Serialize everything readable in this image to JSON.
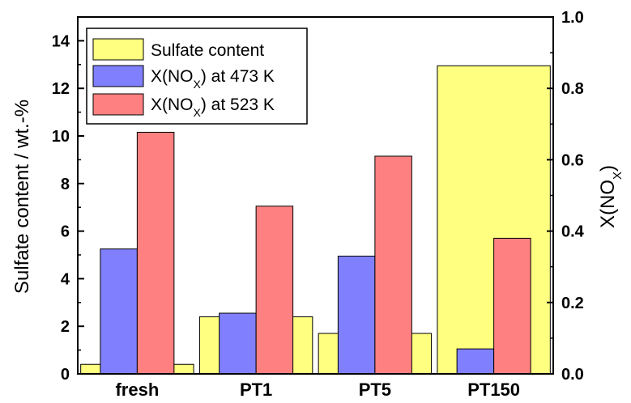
{
  "chart_data": {
    "type": "bar",
    "categories": [
      "fresh",
      "PT1",
      "PT5",
      "PT150"
    ],
    "left_axis": {
      "label": "Sulfate content / wt.-%",
      "ylim": [
        0,
        15
      ],
      "ticks": [
        0,
        2,
        4,
        6,
        8,
        10,
        12,
        14
      ]
    },
    "right_axis": {
      "label_main": "X(NO",
      "label_sub": "X",
      "label_close": ")",
      "ylim": [
        0,
        1.0
      ],
      "ticks": [
        "0.0",
        "0.2",
        "0.4",
        "0.6",
        "0.8",
        "1.0"
      ]
    },
    "series": [
      {
        "name": "Sulfate content",
        "axis": "left",
        "color": "#ffff80",
        "values": [
          0.4,
          2.4,
          1.7,
          12.95
        ]
      },
      {
        "name_main": "X(NO",
        "name_sub": "X",
        "name_rest": ") at 473 K",
        "axis": "right",
        "color": "#8080ff",
        "values": [
          0.35,
          0.17,
          0.33,
          0.07
        ]
      },
      {
        "name_main": "X(NO",
        "name_sub": "X",
        "name_rest": ") at 523 K",
        "axis": "right",
        "color": "#ff8080",
        "values": [
          0.677,
          0.47,
          0.61,
          0.38
        ]
      }
    ],
    "legend_position": "top-left",
    "grid": false
  }
}
